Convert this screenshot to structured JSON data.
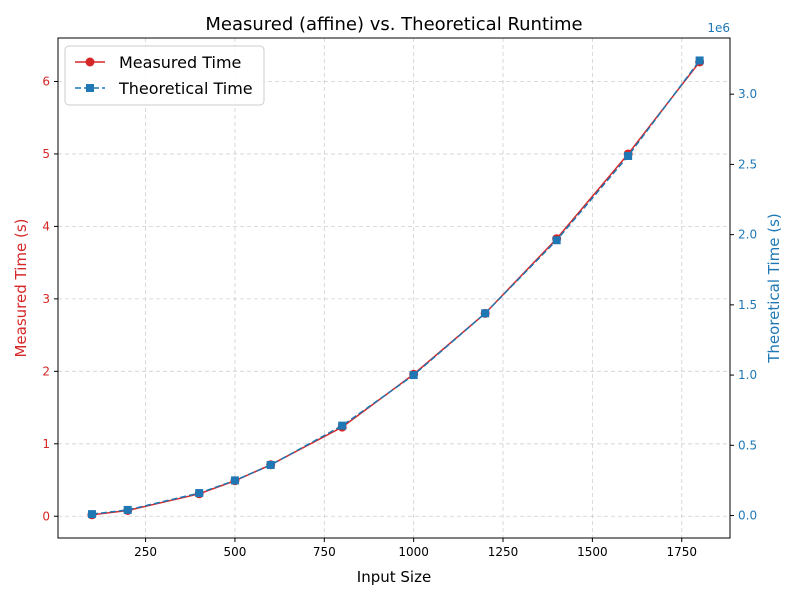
{
  "chart_data": {
    "type": "line",
    "title": "Measured (affine) vs. Theoretical Runtime",
    "xlabel": "Input Size",
    "ylabel_left": "Measured Time (s)",
    "ylabel_right": "Theoretical Time (s)",
    "right_axis_offset_label": "1e6",
    "x": [
      100,
      200,
      400,
      500,
      600,
      800,
      1000,
      1200,
      1400,
      1600,
      1800
    ],
    "xlim": [
      5,
      1885
    ],
    "ylim_left": [
      -0.3,
      6.6
    ],
    "ylim_right": [
      -160000,
      3400000
    ],
    "x_ticks": [
      250,
      500,
      750,
      1000,
      1250,
      1500,
      1750
    ],
    "x_tick_labels": [
      "250",
      "500",
      "750",
      "1000",
      "1250",
      "1500",
      "1750"
    ],
    "y_left_ticks": [
      0,
      1,
      2,
      3,
      4,
      5,
      6
    ],
    "y_left_tick_labels": [
      "0",
      "1",
      "2",
      "3",
      "4",
      "5",
      "6"
    ],
    "y_right_ticks": [
      0,
      500000,
      1000000,
      1500000,
      2000000,
      2500000,
      3000000
    ],
    "y_right_tick_labels": [
      "0.0",
      "0.5",
      "1.0",
      "1.5",
      "2.0",
      "2.5",
      "3.0"
    ],
    "grid": true,
    "legend_position": "top-left",
    "series": [
      {
        "name": "Measured Time",
        "axis": "left",
        "color": "#d62728",
        "marker": "circle",
        "line_style": "solid",
        "values": [
          0.02,
          0.08,
          0.31,
          0.49,
          0.71,
          1.23,
          1.96,
          2.8,
          3.83,
          5.0,
          6.27
        ]
      },
      {
        "name": "Theoretical Time",
        "axis": "right",
        "color": "#1f77b4",
        "marker": "square",
        "line_style": "dashed",
        "values": [
          10000,
          40000,
          160000,
          250000,
          360000,
          640000,
          1000000,
          1440000,
          1960000,
          2560000,
          3240000
        ]
      }
    ]
  }
}
